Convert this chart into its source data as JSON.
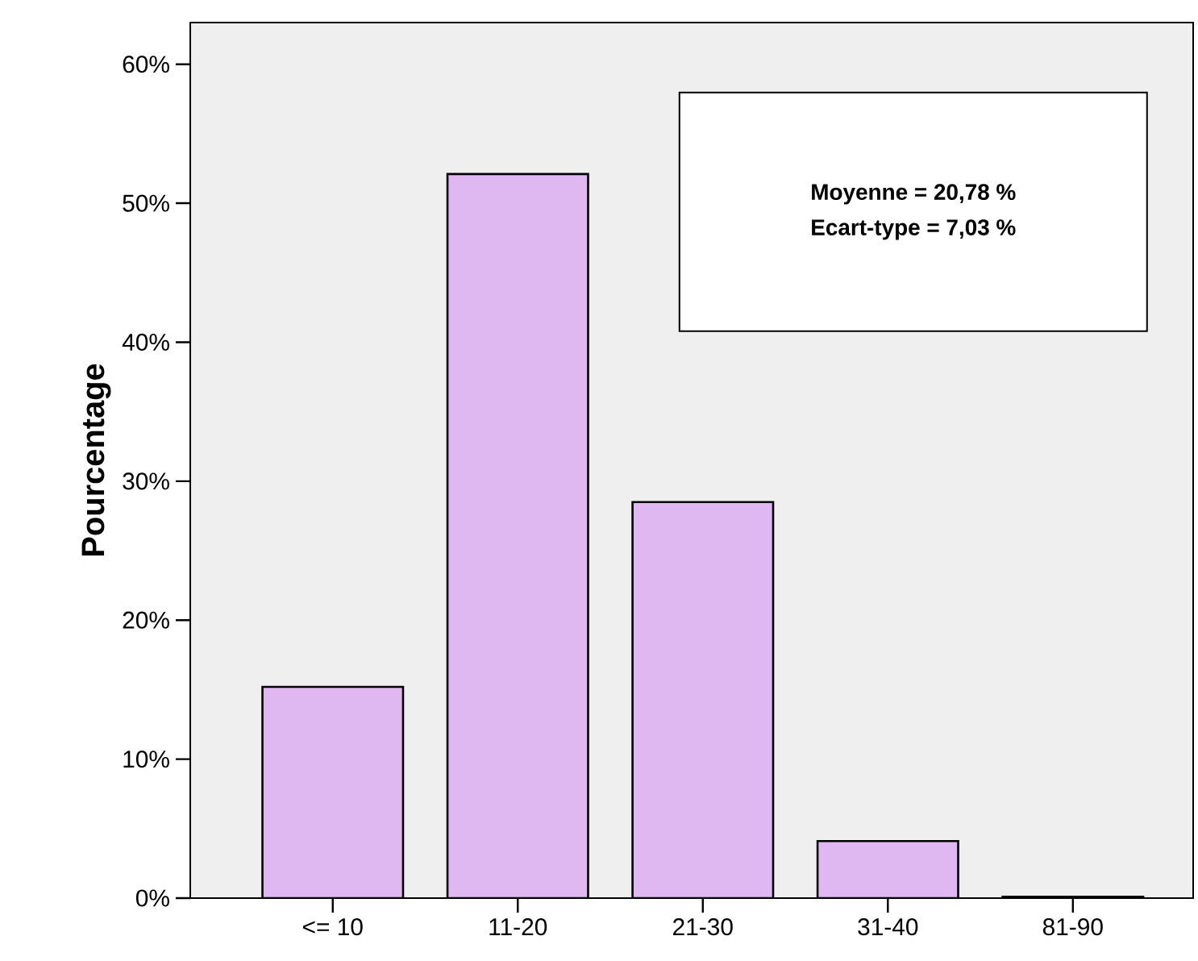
{
  "chart_data": {
    "type": "bar",
    "ylabel": "Pourcentage",
    "categories": [
      "<= 10",
      "11-20",
      "21-30",
      "31-40",
      "81-90"
    ],
    "values": [
      15.2,
      52.1,
      28.5,
      4.1,
      0.1
    ],
    "color": "#dfb8f2",
    "ylim": [
      0,
      63
    ],
    "yticks": [
      {
        "value": 0,
        "label": "0%"
      },
      {
        "value": 10,
        "label": "10%"
      },
      {
        "value": 20,
        "label": "20%"
      },
      {
        "value": 30,
        "label": "30%"
      },
      {
        "value": 40,
        "label": "40%"
      },
      {
        "value": 50,
        "label": "50%"
      },
      {
        "value": 60,
        "label": "60%"
      }
    ],
    "annotations": [
      "Moyenne = 20,78 %",
      "Ecart-type = 7,03 %"
    ],
    "grid": false
  }
}
